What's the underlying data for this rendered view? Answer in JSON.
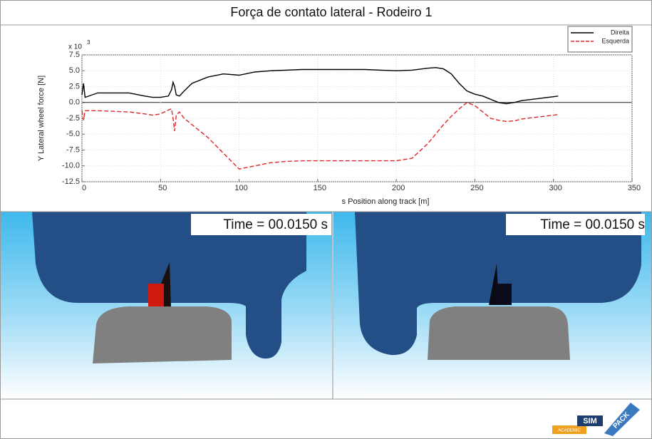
{
  "chart_data": {
    "type": "line",
    "title": "Força de contato lateral - Rodeiro 1",
    "x_label": "s Position along track [m]",
    "y_label": "Y Lateral wheel force [N]",
    "y_multiplier": {
      "base": "x 10",
      "exponent": "3"
    },
    "x": [
      0,
      1,
      2,
      10,
      20,
      30,
      40,
      45,
      50,
      55,
      57,
      58,
      59,
      60,
      62,
      65,
      70,
      80,
      90,
      100,
      110,
      120,
      130,
      140,
      150,
      160,
      170,
      180,
      190,
      200,
      210,
      220,
      225,
      230,
      235,
      240,
      245,
      250,
      255,
      260,
      265,
      270,
      275,
      280,
      290,
      300,
      303
    ],
    "series": [
      {
        "name": "Direita",
        "color": "#000000",
        "dash": false,
        "values": [
          1.2,
          3,
          0.8,
          1.5,
          1.5,
          1.5,
          1.0,
          0.8,
          0.8,
          1.0,
          2,
          3.2,
          2.5,
          1.2,
          1.0,
          1.8,
          3.0,
          4.0,
          4.5,
          4.3,
          4.8,
          5.0,
          5.1,
          5.2,
          5.2,
          5.2,
          5.2,
          5.2,
          5.1,
          5.0,
          5.1,
          5.4,
          5.5,
          5.3,
          4.5,
          3.0,
          1.8,
          1.3,
          1.0,
          0.5,
          0,
          -0.2,
          0,
          0.3,
          0.6,
          0.9,
          1.0
        ]
      },
      {
        "name": "Esquerda",
        "color": "#e0262a",
        "dash": true,
        "values": [
          -1.3,
          -2.8,
          -1.3,
          -1.3,
          -1.4,
          -1.5,
          -1.8,
          -2.0,
          -1.8,
          -1.2,
          -1.0,
          -2.5,
          -4.5,
          -2.0,
          -1.5,
          -2.5,
          -3.5,
          -5.5,
          -8.0,
          -10.5,
          -10.0,
          -9.5,
          -9.3,
          -9.2,
          -9.2,
          -9.2,
          -9.2,
          -9.2,
          -9.2,
          -9.2,
          -8.8,
          -6.5,
          -5.0,
          -3.5,
          -2.2,
          -1.0,
          0,
          -0.5,
          -1.5,
          -2.5,
          -2.8,
          -3.0,
          -2.9,
          -2.6,
          -2.3,
          -2.0,
          -1.9
        ]
      }
    ],
    "xlim": [
      0,
      350
    ],
    "xticks": [
      0,
      50,
      100,
      150,
      200,
      250,
      300,
      350
    ],
    "ylim": [
      -12.5,
      7.5
    ],
    "yticks": [
      7.5,
      {
        "value": 5,
        "label": "5.0"
      },
      2.5,
      {
        "value": 0,
        "label": "0.0"
      },
      -2.5,
      {
        "value": -5,
        "label": "-5.0"
      },
      -7.5,
      {
        "value": -10,
        "label": "-10.0"
      },
      -12.5
    ],
    "grid": true,
    "legend": "top-right"
  },
  "views": [
    {
      "time_label": "Time = 00.0150 s"
    },
    {
      "time_label": "Time = 00.0150 s"
    }
  ],
  "logo": {
    "left": "SIM",
    "right": "PACK",
    "sub": "ACADEMIC"
  }
}
